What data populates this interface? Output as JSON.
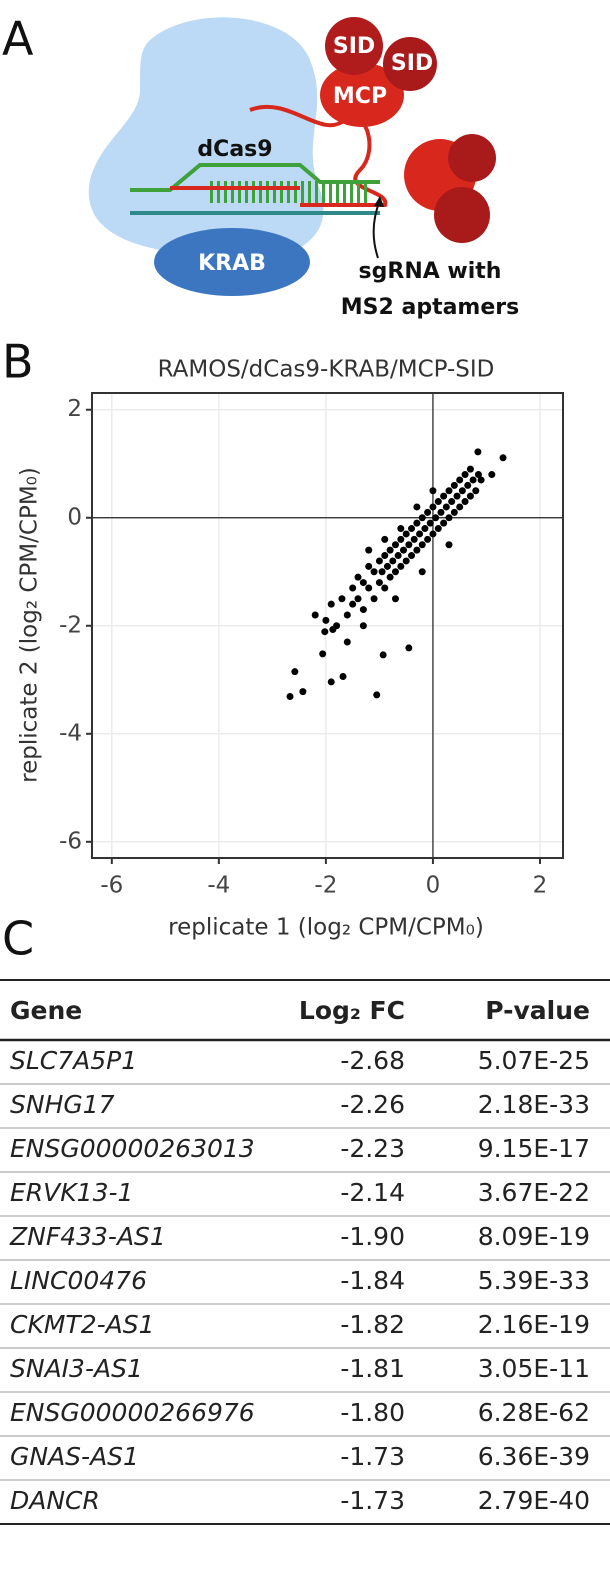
{
  "panel_labels": [
    "A",
    "B",
    "C"
  ],
  "diagram": {
    "labels": [
      "SID",
      "SID",
      "MCP",
      "dCas9",
      "KRAB",
      "sgRNA with",
      "MS2 aptamers"
    ]
  },
  "chart_data": {
    "type": "scatter",
    "title": "RAMOS/dCas9-KRAB/MCP-SID",
    "x_label": "replicate 1 (log₂ CPM/CPM₀)",
    "y_label": "replicate 2 (log₂ CPM/CPM₀)",
    "color": "#000000",
    "grid": true,
    "xlim": [
      -6.37,
      2.43
    ],
    "ylim": [
      -6.3,
      2.31
    ],
    "xticks": [
      -6,
      -4,
      -2,
      0,
      2
    ],
    "yticks": [
      -6,
      -4,
      -2,
      0,
      2
    ],
    "x": [
      -2.67,
      -2.43,
      -2.58,
      -1.9,
      -1.68,
      -1.05,
      -0.45,
      -0.93,
      -2.06,
      -2.02,
      -1.87,
      1.31,
      0.84,
      1.1,
      -2.0,
      -1.9,
      -1.8,
      -1.7,
      -1.6,
      -1.5,
      -1.5,
      -1.4,
      -1.4,
      -1.3,
      -1.3,
      -1.2,
      -1.2,
      -1.1,
      -1.1,
      -1.0,
      -1.0,
      -0.95,
      -0.9,
      -0.9,
      -0.85,
      -0.8,
      -0.8,
      -0.75,
      -0.7,
      -0.7,
      -0.65,
      -0.6,
      -0.6,
      -0.55,
      -0.5,
      -0.5,
      -0.45,
      -0.4,
      -0.4,
      -0.35,
      -0.3,
      -0.3,
      -0.25,
      -0.2,
      -0.2,
      -0.15,
      -0.1,
      -0.1,
      -0.05,
      0.0,
      0.0,
      0.05,
      0.1,
      0.1,
      0.15,
      0.2,
      0.2,
      0.25,
      0.3,
      0.3,
      0.35,
      0.4,
      0.4,
      0.45,
      0.5,
      0.5,
      0.55,
      0.6,
      0.6,
      0.65,
      0.7,
      0.7,
      0.75,
      0.8,
      0.85,
      0.9,
      -0.6,
      -0.3,
      0.0,
      -1.2,
      -0.9,
      -2.2,
      -1.6,
      -1.3,
      -0.7,
      -0.2,
      0.3
    ],
    "values": [
      -3.31,
      -3.22,
      -2.85,
      -3.04,
      -2.94,
      -3.28,
      -2.41,
      -2.54,
      -2.52,
      -2.11,
      -2.07,
      1.11,
      1.22,
      0.8,
      -1.9,
      -1.6,
      -2.0,
      -1.5,
      -1.8,
      -1.3,
      -1.6,
      -1.1,
      -1.5,
      -1.2,
      -1.7,
      -0.9,
      -1.3,
      -1.0,
      -1.5,
      -0.8,
      -1.2,
      -1.0,
      -0.7,
      -1.3,
      -0.9,
      -0.6,
      -1.1,
      -0.8,
      -0.5,
      -1.0,
      -0.7,
      -0.4,
      -0.9,
      -0.6,
      -0.3,
      -0.8,
      -0.5,
      -0.2,
      -0.7,
      -0.4,
      -0.1,
      -0.6,
      -0.3,
      0.0,
      -0.5,
      -0.2,
      0.1,
      -0.4,
      -0.1,
      0.2,
      -0.3,
      0.0,
      0.3,
      -0.2,
      0.1,
      0.4,
      -0.1,
      0.2,
      0.5,
      0.0,
      0.3,
      0.6,
      0.1,
      0.4,
      0.7,
      0.2,
      0.5,
      0.8,
      0.3,
      0.6,
      0.9,
      0.4,
      0.7,
      0.5,
      0.8,
      0.7,
      -0.2,
      0.2,
      0.5,
      -0.6,
      -0.4,
      -1.8,
      -2.3,
      -2.0,
      -1.5,
      -1.0,
      -0.5
    ]
  },
  "table": {
    "header": [
      "Gene",
      "Log₂ FC",
      "P-value"
    ],
    "rows": [
      [
        "SLC7A5P1",
        "-2.68",
        "5.07E-25"
      ],
      [
        "SNHG17",
        "-2.26",
        "2.18E-33"
      ],
      [
        "ENSG00000263013",
        "-2.23",
        "9.15E-17"
      ],
      [
        "ERVK13-1",
        "-2.14",
        "3.67E-22"
      ],
      [
        "ZNF433-AS1",
        "-1.90",
        "8.09E-19"
      ],
      [
        "LINC00476",
        "-1.84",
        "5.39E-33"
      ],
      [
        "CKMT2-AS1",
        "-1.82",
        "2.16E-19"
      ],
      [
        "SNAI3-AS1",
        "-1.81",
        "3.05E-11"
      ],
      [
        "ENSG00000266976",
        "-1.80",
        "6.28E-62"
      ],
      [
        "GNAS-AS1",
        "-1.73",
        "6.36E-39"
      ],
      [
        "DANCR",
        "-1.73",
        "2.79E-40"
      ]
    ]
  }
}
